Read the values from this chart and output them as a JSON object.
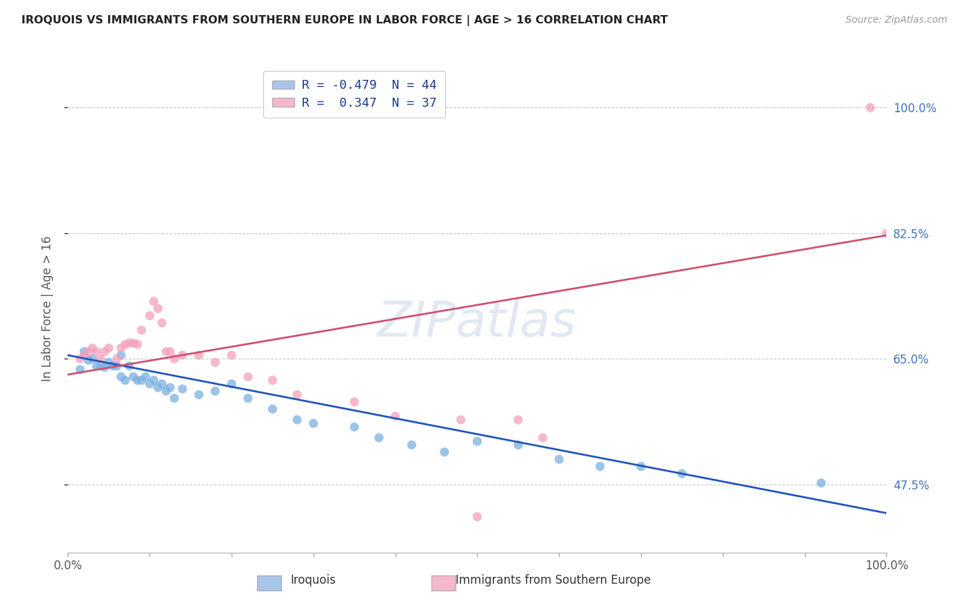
{
  "title": "IROQUOIS VS IMMIGRANTS FROM SOUTHERN EUROPE IN LABOR FORCE | AGE > 16 CORRELATION CHART",
  "source": "Source: ZipAtlas.com",
  "ylabel": "In Labor Force | Age > 16",
  "xmin": 0.0,
  "xmax": 1.0,
  "ymin": 0.38,
  "ymax": 1.06,
  "yticks": [
    0.475,
    0.65,
    0.825,
    1.0
  ],
  "ytick_labels": [
    "47.5%",
    "65.0%",
    "82.5%",
    "100.0%"
  ],
  "xtick_labels_show": [
    "0.0%",
    "100.0%"
  ],
  "legend_entries": [
    {
      "label": "R = -0.479  N = 44",
      "color": "#a8c4e8"
    },
    {
      "label": "R =  0.347  N = 37",
      "color": "#f4b8cc"
    }
  ],
  "blue_scatter_x": [
    0.015,
    0.02,
    0.025,
    0.03,
    0.035,
    0.04,
    0.045,
    0.05,
    0.055,
    0.06,
    0.065,
    0.065,
    0.07,
    0.075,
    0.08,
    0.085,
    0.09,
    0.095,
    0.1,
    0.105,
    0.11,
    0.115,
    0.12,
    0.125,
    0.13,
    0.14,
    0.16,
    0.18,
    0.2,
    0.22,
    0.25,
    0.28,
    0.3,
    0.35,
    0.38,
    0.42,
    0.46,
    0.5,
    0.55,
    0.6,
    0.65,
    0.7,
    0.75,
    0.92
  ],
  "blue_scatter_y": [
    0.635,
    0.66,
    0.648,
    0.65,
    0.64,
    0.64,
    0.638,
    0.645,
    0.64,
    0.64,
    0.625,
    0.655,
    0.62,
    0.64,
    0.625,
    0.62,
    0.62,
    0.625,
    0.615,
    0.62,
    0.61,
    0.615,
    0.605,
    0.61,
    0.595,
    0.608,
    0.6,
    0.605,
    0.615,
    0.595,
    0.58,
    0.565,
    0.56,
    0.555,
    0.54,
    0.53,
    0.52,
    0.535,
    0.53,
    0.51,
    0.5,
    0.5,
    0.49,
    0.477
  ],
  "pink_scatter_x": [
    0.015,
    0.02,
    0.025,
    0.03,
    0.035,
    0.04,
    0.045,
    0.05,
    0.06,
    0.065,
    0.07,
    0.075,
    0.08,
    0.085,
    0.09,
    0.1,
    0.105,
    0.11,
    0.115,
    0.12,
    0.125,
    0.13,
    0.14,
    0.16,
    0.18,
    0.2,
    0.22,
    0.25,
    0.28,
    0.35,
    0.4,
    0.48,
    0.5,
    0.55,
    0.58,
    0.98,
    1.0
  ],
  "pink_scatter_y": [
    0.65,
    0.655,
    0.66,
    0.665,
    0.66,
    0.65,
    0.66,
    0.665,
    0.65,
    0.665,
    0.67,
    0.672,
    0.672,
    0.67,
    0.69,
    0.71,
    0.73,
    0.72,
    0.7,
    0.66,
    0.66,
    0.65,
    0.655,
    0.655,
    0.645,
    0.655,
    0.625,
    0.62,
    0.6,
    0.59,
    0.57,
    0.565,
    0.43,
    0.565,
    0.54,
    1.0,
    0.825
  ],
  "blue_line_x": [
    0.0,
    1.0
  ],
  "blue_line_y": [
    0.655,
    0.435
  ],
  "pink_line_x": [
    0.0,
    1.0
  ],
  "pink_line_y": [
    0.628,
    0.822
  ],
  "blue_scatter_color": "#7ab0e0",
  "pink_scatter_color": "#f4a0bc",
  "blue_line_color": "#2255bb",
  "pink_line_color": "#d05070",
  "watermark_text": "ZIPatlas",
  "background_color": "#ffffff",
  "grid_color": "#c8c8c8",
  "bottom_legend_blue": "Iroquois",
  "bottom_legend_pink": "Immigrants from Southern Europe"
}
